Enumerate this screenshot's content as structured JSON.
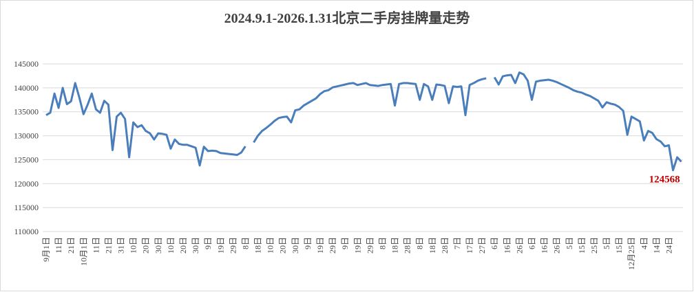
{
  "chart_data": {
    "type": "line",
    "title": "2024.9.1-2026.1.31北京二手房挂牌量走势",
    "categories": [
      "9月1日",
      null,
      null,
      "11日",
      null,
      null,
      "21日",
      null,
      null,
      "10月1日",
      null,
      null,
      "11日",
      null,
      null,
      "21日",
      null,
      null,
      "31日",
      null,
      null,
      "10日",
      null,
      null,
      "20日",
      null,
      null,
      "30日",
      null,
      null,
      "10日",
      null,
      null,
      "20日",
      null,
      null,
      "30日",
      null,
      null,
      "9日",
      null,
      null,
      "19日",
      null,
      null,
      "29日",
      null,
      null,
      "8日",
      null,
      null,
      "18日",
      null,
      null,
      "10日",
      null,
      null,
      "20日",
      null,
      null,
      "30日",
      null,
      null,
      "9日",
      null,
      null,
      "19日",
      null,
      null,
      "29日",
      null,
      null,
      "9日",
      null,
      null,
      "19日",
      null,
      null,
      "29日",
      null,
      null,
      "8日",
      null,
      null,
      "18日",
      null,
      null,
      "28日",
      null,
      null,
      "8日",
      null,
      null,
      "18日",
      null,
      null,
      "28日",
      null,
      null,
      "7日",
      null,
      null,
      "17日",
      null,
      null,
      "27日",
      null,
      null,
      "6日",
      null,
      null,
      "16日",
      null,
      null,
      "26日",
      null,
      null,
      "6日",
      null,
      null,
      "16日",
      null,
      null,
      "26日",
      null,
      null,
      "5日",
      null,
      null,
      "15日",
      null,
      null,
      "25日",
      null,
      null,
      "5日",
      null,
      null,
      "15日",
      null,
      null,
      "12月25日",
      null,
      null,
      "4日",
      null,
      null,
      "14日",
      null,
      null,
      "24日",
      null,
      null,
      null
    ],
    "series": [
      {
        "color": "#4a7ebb",
        "values": [
          134300,
          134800,
          138800,
          135800,
          140000,
          136600,
          137200,
          141000,
          138000,
          134500,
          136500,
          138800,
          135500,
          134800,
          137300,
          136500,
          127000,
          134000,
          134800,
          133500,
          125500,
          132800,
          131800,
          132200,
          131000,
          130500,
          129200,
          130500,
          130400,
          130200,
          127300,
          129200,
          128300,
          128100,
          128100,
          127800,
          127500,
          123800,
          127700,
          126800,
          126900,
          126800,
          126400,
          126300,
          126200,
          126100,
          126000,
          126500,
          127800,
          null,
          128600,
          130000,
          131000,
          131600,
          132300,
          133100,
          133700,
          133900,
          134000,
          132800,
          135300,
          135500,
          136300,
          136800,
          137300,
          137800,
          138700,
          139300,
          139500,
          140100,
          140300,
          140500,
          140700,
          140900,
          141000,
          140600,
          140800,
          141000,
          140600,
          140500,
          140400,
          140600,
          140700,
          140800,
          136300,
          140800,
          141000,
          141000,
          140900,
          140800,
          137500,
          140800,
          140300,
          137500,
          140700,
          140600,
          140400,
          136800,
          140300,
          140200,
          140300,
          134300,
          140600,
          141000,
          141500,
          141800,
          142000,
          null,
          142200,
          140700,
          142400,
          142600,
          142700,
          141000,
          143200,
          142800,
          141500,
          137500,
          141300,
          141500,
          141600,
          141700,
          141500,
          141200,
          140800,
          140400,
          140000,
          139500,
          139200,
          139000,
          138600,
          138300,
          137800,
          137300,
          135900,
          137000,
          136700,
          136500,
          136000,
          135200,
          130200,
          134000,
          133500,
          133000,
          129000,
          131000,
          130600,
          129300,
          128800,
          127800,
          128000,
          122800,
          125500,
          124568
        ]
      }
    ],
    "ylim": [
      110000,
      145000
    ],
    "yticks": [
      110000,
      115000,
      120000,
      125000,
      130000,
      135000,
      140000,
      145000
    ],
    "grid": true
  }
}
